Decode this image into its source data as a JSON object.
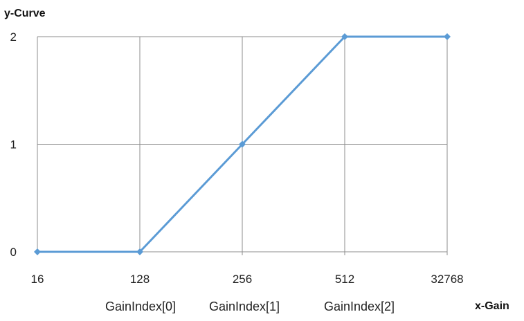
{
  "chart_data": {
    "type": "line",
    "title": "",
    "xlabel": "x-Gain",
    "ylabel": "y-Curve",
    "categories": [
      "16",
      "128",
      "256",
      "512",
      "32768"
    ],
    "series": [
      {
        "values": [
          0,
          0,
          1,
          2,
          2
        ]
      }
    ],
    "ylim": [
      0,
      2
    ],
    "yticks": [
      "0",
      "1",
      "2"
    ],
    "grid": true,
    "legend": "none",
    "annotations": [
      "GainIndex[0]",
      "GainIndex[1]",
      "GainIndex[2]"
    ],
    "annotation_categories": [
      1,
      2,
      3
    ],
    "colors": {
      "line": "#5b9bd5",
      "grid": "#8c8c8c",
      "axis": "#8c8c8c"
    }
  }
}
